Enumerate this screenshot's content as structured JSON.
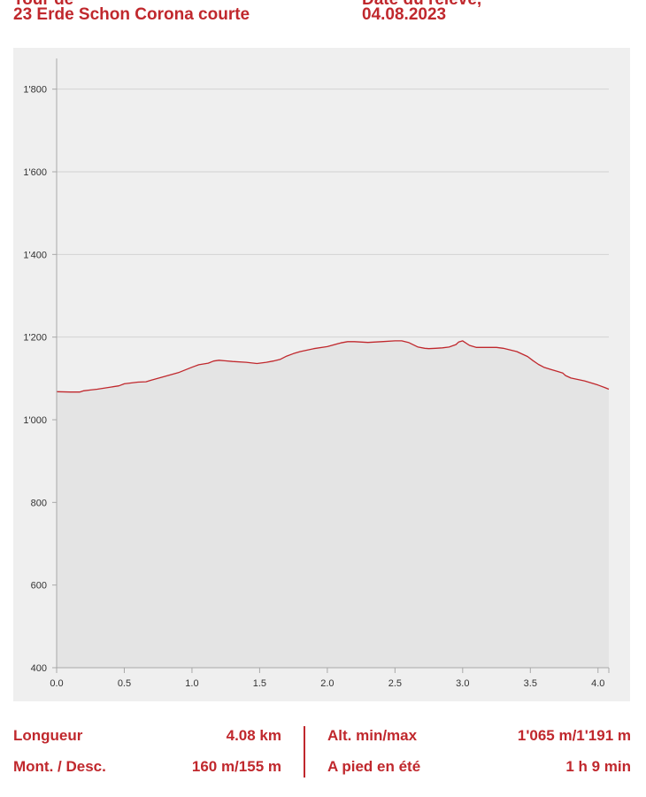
{
  "header": {
    "title": "23 Erde Schon Corona courte",
    "date": "04.08.2023"
  },
  "chart_data": {
    "type": "area",
    "title": "",
    "xlabel": "",
    "ylabel": "",
    "xlim": [
      0,
      4.08
    ],
    "ylim": [
      400,
      1870
    ],
    "grid": true,
    "x_ticks": [
      0.0,
      0.5,
      1.0,
      1.5,
      2.0,
      2.5,
      3.0,
      3.5,
      4.0
    ],
    "x_tick_labels": [
      "0.0",
      "0.5",
      "1.0",
      "1.5",
      "2.0",
      "2.5",
      "3.0",
      "3.5",
      "4.0"
    ],
    "y_ticks": [
      400,
      600,
      800,
      1000,
      1200,
      1400,
      1600,
      1800
    ],
    "y_tick_labels": [
      "400",
      "600",
      "800",
      "1'000",
      "1'200",
      "1'400",
      "1'600",
      "1'800"
    ],
    "series": [
      {
        "color": "#c0282d",
        "fill": "#e4e4e4",
        "x": [
          0.0,
          0.1,
          0.17,
          0.2,
          0.25,
          0.3,
          0.4,
          0.46,
          0.5,
          0.6,
          0.66,
          0.7,
          0.8,
          0.9,
          1.0,
          1.05,
          1.12,
          1.16,
          1.2,
          1.3,
          1.4,
          1.48,
          1.55,
          1.6,
          1.65,
          1.7,
          1.75,
          1.8,
          1.9,
          2.0,
          2.1,
          2.15,
          2.2,
          2.3,
          2.4,
          2.5,
          2.55,
          2.6,
          2.67,
          2.72,
          2.75,
          2.8,
          2.85,
          2.9,
          2.95,
          2.97,
          3.0,
          3.05,
          3.1,
          3.2,
          3.25,
          3.3,
          3.4,
          3.48,
          3.52,
          3.56,
          3.6,
          3.65,
          3.7,
          3.74,
          3.76,
          3.8,
          3.9,
          4.0,
          4.05,
          4.08
        ],
        "y": [
          1068,
          1067,
          1067,
          1070,
          1072,
          1074,
          1079,
          1082,
          1087,
          1091,
          1092,
          1096,
          1105,
          1114,
          1127,
          1133,
          1137,
          1142,
          1144,
          1141,
          1139,
          1136,
          1139,
          1142,
          1146,
          1154,
          1160,
          1165,
          1172,
          1177,
          1186,
          1189,
          1189,
          1187,
          1189,
          1191,
          1191,
          1187,
          1176,
          1173,
          1172,
          1173,
          1174,
          1176,
          1182,
          1188,
          1191,
          1180,
          1175,
          1175,
          1175,
          1173,
          1165,
          1153,
          1143,
          1134,
          1127,
          1122,
          1117,
          1113,
          1107,
          1101,
          1094,
          1084,
          1078,
          1074
        ]
      }
    ]
  },
  "stats": {
    "length_label": "Longueur",
    "length_value": "4.08 km",
    "altitude_label": "Alt. min/max",
    "altitude_value": "1'065 m/1'191 m",
    "ascent_label": "Mont. / Desc.",
    "ascent_value": "160 m/155 m",
    "time_label": "A pied en été",
    "time_value": "1 h 9 min"
  }
}
